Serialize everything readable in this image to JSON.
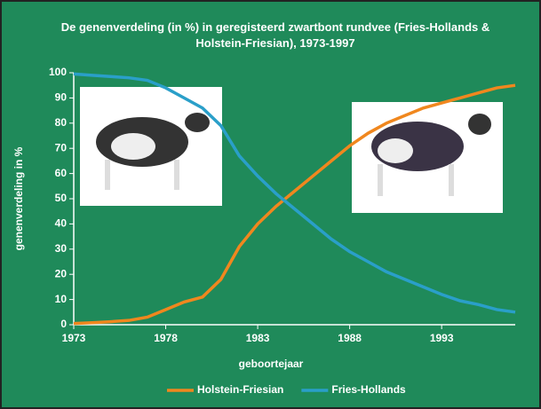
{
  "chart_data": {
    "type": "line",
    "title": "De genenverdeling (in %) in geregisteerd zwartbont rundvee (Fries-Hollands & Holstein-Friesian), 1973-1997",
    "x_label": "geboortejaar",
    "y_label": "genenverdeling in %",
    "x": [
      1973,
      1974,
      1975,
      1976,
      1977,
      1978,
      1979,
      1980,
      1981,
      1982,
      1983,
      1984,
      1985,
      1986,
      1987,
      1988,
      1989,
      1990,
      1991,
      1992,
      1993,
      1994,
      1995,
      1996,
      1997
    ],
    "series": [
      {
        "name": "Holstein-Friesian",
        "color": "#f0871e",
        "values": [
          0.5,
          0.8,
          1.2,
          1.7,
          3,
          6,
          9,
          11,
          18,
          31,
          40,
          47,
          53,
          59,
          65,
          71,
          76,
          80,
          83,
          86,
          88,
          90,
          92,
          94,
          95
        ]
      },
      {
        "name": "Fries-Hollands",
        "color": "#2a9fc9",
        "values": [
          99.5,
          99,
          98.5,
          98,
          97,
          94,
          90,
          86,
          79,
          67,
          59,
          52,
          46,
          40,
          34,
          29,
          25,
          21,
          18,
          15,
          12,
          9.5,
          8,
          6,
          5
        ]
      }
    ],
    "xlim": [
      1973,
      1997
    ],
    "xticks": [
      1973,
      1978,
      1983,
      1988,
      1993
    ],
    "ylim": [
      0,
      100
    ],
    "yticks": [
      0,
      10,
      20,
      30,
      40,
      50,
      60,
      70,
      80,
      90,
      100
    ]
  }
}
